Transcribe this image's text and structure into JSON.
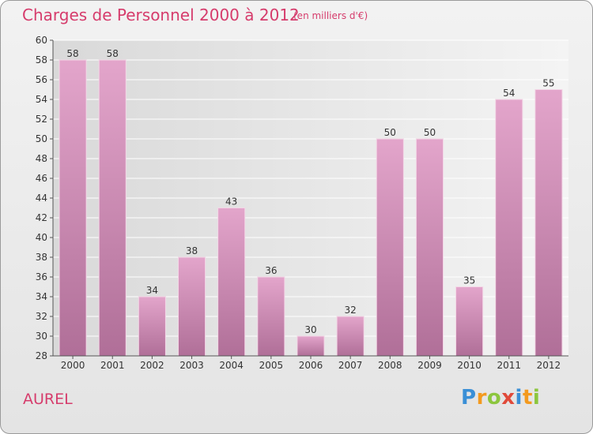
{
  "chart_data": {
    "type": "bar",
    "title": "Charges de Personnel 2000 à 2012",
    "subtitle": "(en milliers d'€)",
    "categories": [
      "2000",
      "2001",
      "2002",
      "2003",
      "2004",
      "2005",
      "2006",
      "2007",
      "2008",
      "2009",
      "2010",
      "2011",
      "2012"
    ],
    "values": [
      58,
      58,
      34,
      38,
      43,
      36,
      30,
      32,
      50,
      50,
      35,
      54,
      55
    ],
    "ylim": [
      28,
      60
    ],
    "yticks": [
      28,
      30,
      32,
      34,
      36,
      38,
      40,
      42,
      44,
      46,
      48,
      50,
      52,
      54,
      56,
      58,
      60
    ],
    "grid": true,
    "bar_color": "#cc88b0"
  },
  "location": "AUREL",
  "logo": {
    "letters": [
      "P",
      "r",
      "o",
      "x",
      "i",
      "t",
      "i"
    ],
    "colors": [
      "#3a8fd6",
      "#f39a1f",
      "#8cc63e",
      "#e04a3a",
      "#3a8fd6",
      "#f39a1f",
      "#8cc63e"
    ]
  },
  "colors": {
    "accent": "#d63c6c"
  }
}
